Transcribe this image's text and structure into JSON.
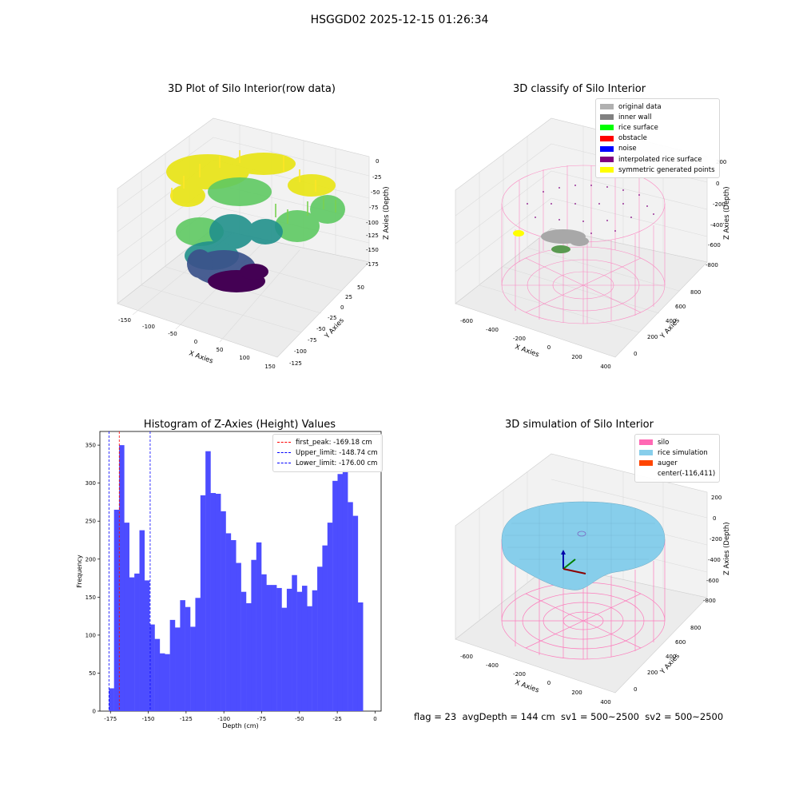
{
  "suptitle": "HSGGD02 2025-12-15 01:26:34",
  "panels": {
    "raw": {
      "title": "3D Plot of Silo Interior(row data)",
      "xlabel": "X Axies",
      "ylabel": "Y Axies",
      "zlabel": "Z Axies (Depth)",
      "xticks": [
        "-150",
        "-100",
        "-50",
        "0",
        "50",
        "100",
        "150"
      ],
      "yticks": [
        "-125",
        "-100",
        "-75",
        "-50",
        "-25",
        "0",
        "25",
        "50"
      ],
      "zticks": [
        "0",
        "-25",
        "-50",
        "-75",
        "-100",
        "-125",
        "-150",
        "-175"
      ]
    },
    "classify": {
      "title": "3D classify of Silo Interior",
      "xlabel": "X Axies",
      "ylabel": "Y Axies",
      "zlabel": "Z Axies (Depth)",
      "xticks": [
        "-600",
        "-400",
        "-200",
        "0",
        "200",
        "400"
      ],
      "yticks": [
        "0",
        "200",
        "400",
        "600",
        "800"
      ],
      "zticks": [
        "200",
        "0",
        "-200",
        "-400",
        "-600",
        "-800"
      ],
      "legend": [
        {
          "label": "original data",
          "color": "#b0b0b0"
        },
        {
          "label": "inner wall",
          "color": "#808080"
        },
        {
          "label": "rice surface",
          "color": "#00ff00"
        },
        {
          "label": "obstacle",
          "color": "#ff0000"
        },
        {
          "label": "noise",
          "color": "#0000ff"
        },
        {
          "label": "interpolated rice surface",
          "color": "#800080"
        },
        {
          "label": "symmetric generated points",
          "color": "#ffff00"
        }
      ]
    },
    "simulation": {
      "title": "3D simulation of Silo Interior",
      "xlabel": "X Axies",
      "ylabel": "Y Axies",
      "zlabel": "Z Axies (Depth)",
      "xticks": [
        "-600",
        "-400",
        "-200",
        "0",
        "200",
        "400"
      ],
      "yticks": [
        "0",
        "200",
        "400",
        "600",
        "800"
      ],
      "zticks": [
        "200",
        "0",
        "-200",
        "-400",
        "-600",
        "-800"
      ],
      "legend": [
        {
          "label": "silo",
          "color": "#ff69b4"
        },
        {
          "label": "rice simulation",
          "color": "#87ceeb"
        },
        {
          "label": "auger",
          "color": "#ff4500"
        },
        {
          "label": "center(-116,411)",
          "color": ""
        }
      ]
    }
  },
  "status_line": "flag = 23  avgDepth = 144 cm  sv1 = 500~2500  sv2 = 500~2500",
  "chart_data": {
    "type": "bar",
    "title": "Histogram of Z-Axies (Height) Values",
    "xlabel": "Depth (cm)",
    "ylabel": "Frequency",
    "xlim": [
      -182,
      4
    ],
    "ylim": [
      0,
      368
    ],
    "xticks": [
      -175,
      -150,
      -125,
      -100,
      -75,
      -50,
      -25,
      0
    ],
    "yticks": [
      0,
      50,
      100,
      150,
      200,
      250,
      300,
      350
    ],
    "bar_color": "#4d4dff",
    "bin_start": -176,
    "bin_width": 3.36,
    "values": [
      30,
      265,
      350,
      248,
      176,
      181,
      238,
      172,
      114,
      95,
      76,
      75,
      120,
      110,
      146,
      137,
      111,
      149,
      284,
      342,
      287,
      286,
      263,
      234,
      225,
      195,
      157,
      142,
      199,
      222,
      180,
      166,
      166,
      162,
      136,
      161,
      179,
      157,
      165,
      138,
      159,
      190,
      218,
      248,
      303,
      312,
      317,
      275,
      257,
      143
    ],
    "lines": [
      {
        "label": "first_peak: -169.18 cm",
        "x": -169.18,
        "color": "#ff0000"
      },
      {
        "label": "Upper_limit: -148.74 cm",
        "x": -148.74,
        "color": "#0000ff"
      },
      {
        "label": "Lower_limit: -176.00 cm",
        "x": -176.0,
        "color": "#0000ff"
      }
    ]
  }
}
